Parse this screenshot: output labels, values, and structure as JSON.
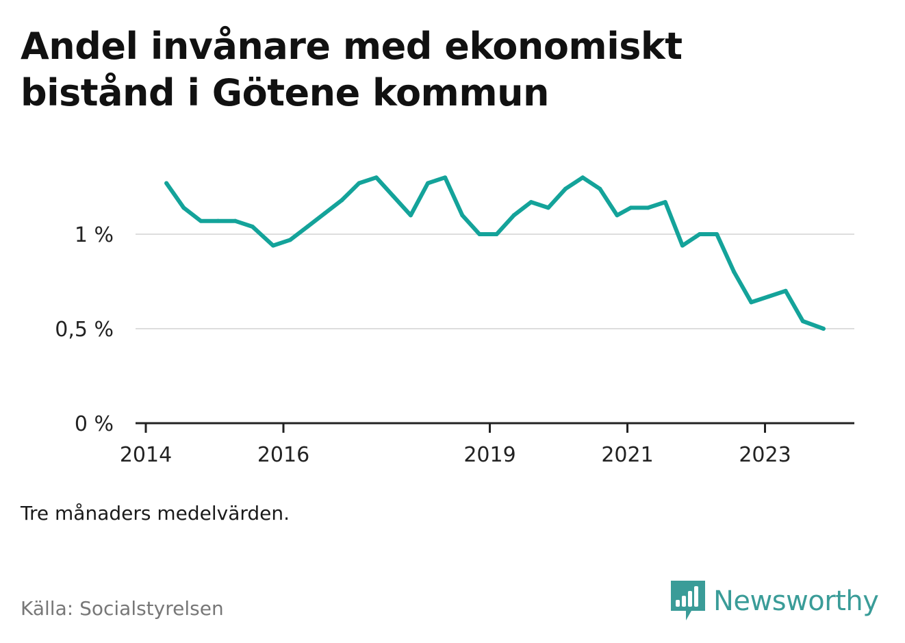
{
  "title": "Andel invånare med ekonomiskt bistånd i Götene kommun",
  "note": "Tre månaders medelvärden.",
  "source": "Källa: Socialstyrelsen",
  "brand": {
    "name": "Newsworthy",
    "icon": "newsworthy-bar-chart-icon",
    "color": "#3a9c98"
  },
  "colors": {
    "line": "#14a39a",
    "grid": "#dddddd",
    "axis": "#222222"
  },
  "chart_data": {
    "type": "line",
    "title": "Andel invånare med ekonomiskt bistånd i Götene kommun",
    "xlabel": "",
    "ylabel": "",
    "xlim": [
      2014.0,
      2024.35
    ],
    "ylim": [
      0,
      1.3
    ],
    "x_ticks": [
      2014,
      2016,
      2019,
      2021,
      2023
    ],
    "x_tick_labels": [
      "2014",
      "2016",
      "2019",
      "2021",
      "2023"
    ],
    "y_ticks": [
      0,
      0.5,
      1
    ],
    "y_tick_labels": [
      "0 %",
      "0,5 %",
      "1 %"
    ],
    "grid": true,
    "legend": "none",
    "series": [
      {
        "x": [
          2014.3,
          2014.55,
          2014.8,
          2015.05,
          2015.3,
          2015.55,
          2015.85,
          2016.1,
          2016.35,
          2016.6,
          2016.85,
          2017.1,
          2017.35,
          2017.6,
          2017.85,
          2018.1,
          2018.35,
          2018.6,
          2018.85,
          2019.1,
          2019.35,
          2019.6,
          2019.85,
          2020.1,
          2020.35,
          2020.6,
          2020.85,
          2021.05,
          2021.3,
          2021.55,
          2021.8,
          2022.05,
          2022.3,
          2022.55,
          2022.8,
          2023.05,
          2023.3,
          2023.55,
          2023.85
        ],
        "values": [
          1.27,
          1.14,
          1.07,
          1.07,
          1.07,
          1.04,
          0.94,
          0.97,
          1.04,
          1.11,
          1.18,
          1.27,
          1.3,
          1.2,
          1.1,
          1.27,
          1.3,
          1.1,
          1.0,
          1.0,
          1.1,
          1.17,
          1.14,
          1.24,
          1.3,
          1.24,
          1.1,
          1.14,
          1.14,
          1.17,
          0.94,
          1.0,
          1.0,
          0.8,
          0.64,
          0.67,
          0.7,
          0.54,
          0.5
        ]
      }
    ]
  }
}
